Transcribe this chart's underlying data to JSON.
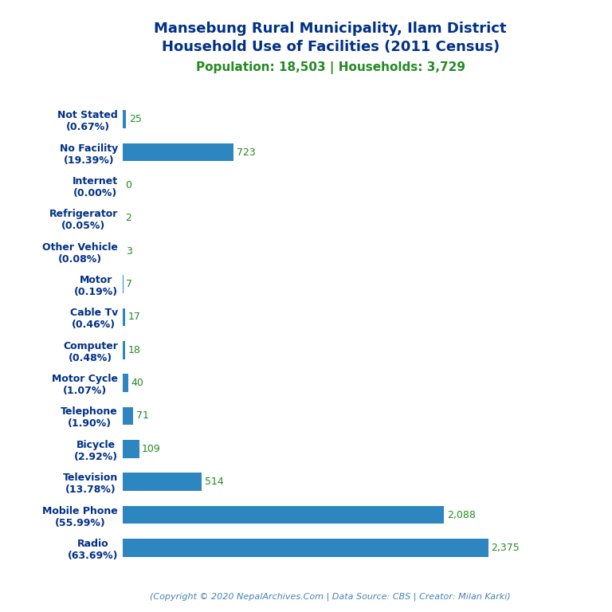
{
  "title_line1": "Mansebung Rural Municipality, Ilam District",
  "title_line2": "Household Use of Facilities (2011 Census)",
  "subtitle": "Population: 18,503 | Households: 3,729",
  "footer": "(Copyright © 2020 NepalArchives.Com | Data Source: CBS | Creator: Milan Karki)",
  "categories": [
    "Radio\n(63.69%)",
    "Mobile Phone\n(55.99%)",
    "Television\n(13.78%)",
    "Bicycle\n(2.92%)",
    "Telephone\n(1.90%)",
    "Motor Cycle\n(1.07%)",
    "Computer\n(0.48%)",
    "Cable Tv\n(0.46%)",
    "Motor\n(0.19%)",
    "Other Vehicle\n(0.08%)",
    "Refrigerator\n(0.05%)",
    "Internet\n(0.00%)",
    "No Facility\n(19.39%)",
    "Not Stated\n(0.67%)"
  ],
  "values": [
    2375,
    2088,
    514,
    109,
    71,
    40,
    18,
    17,
    7,
    3,
    2,
    0,
    723,
    25
  ],
  "bar_color": "#2e86c1",
  "title_color": "#003087",
  "subtitle_color": "#228B22",
  "value_color": "#228B22",
  "footer_color": "#4682B4",
  "background_color": "#ffffff",
  "xlim": [
    0,
    2700
  ]
}
